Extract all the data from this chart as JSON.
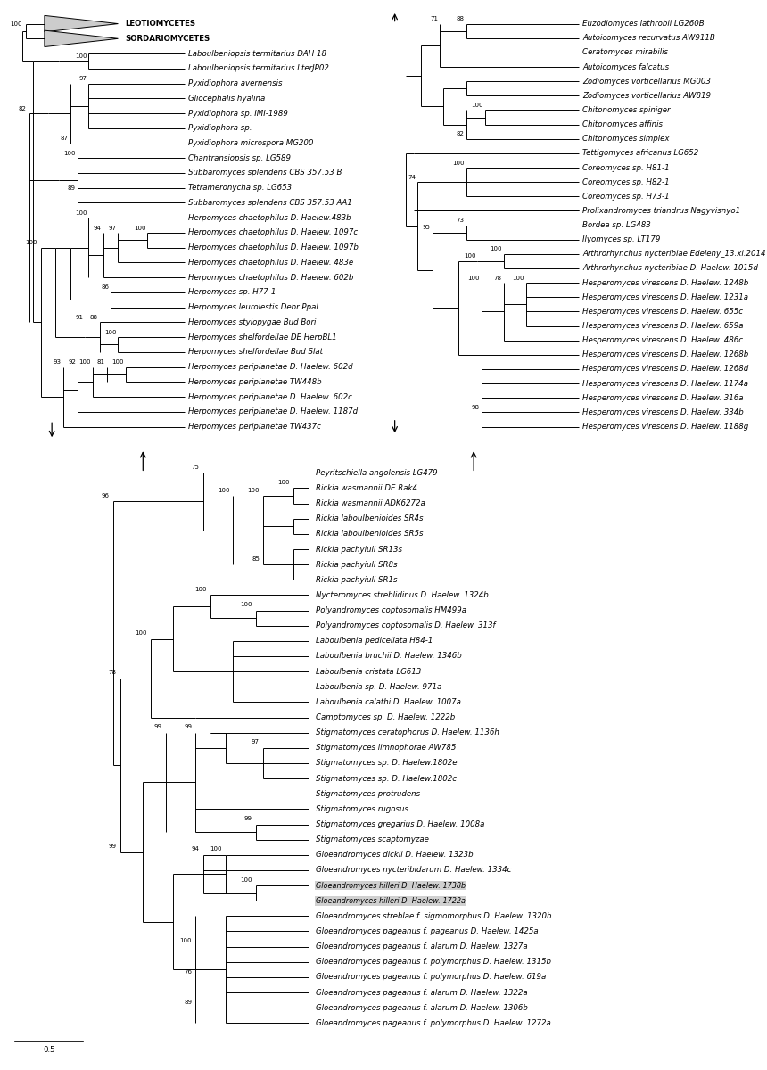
{
  "fontsize": 6.2,
  "bfs": 5.0,
  "lw": 0.7,
  "panel1": {
    "taxa": [
      "LEOTIOMYCETES",
      "SORDARIOMYCETES",
      "Laboulbeniopsis termitarius DAH 18",
      "Laboulbeniopsis termitarius LterJP02",
      "Pyxidiophora avernensis",
      "Gliocephalis hyalina",
      "Pyxidiophora sp. IMI-1989",
      "Pyxidiophora sp.",
      "Pyxidiophora microspora MG200",
      "Chantransiopsis sp. LG589",
      "Subbaromyces splendens CBS 357.53 B",
      "Tetrameronycha sp. LG653",
      "Subbaromyces splendens CBS 357.53 AA1",
      "Herpomyces chaetophilus D. Haelew.483b",
      "Herpomyces chaetophilus D. Haelew. 1097c",
      "Herpomyces chaetophilus D. Haelew. 1097b",
      "Herpomyces chaetophilus D. Haelew. 483e",
      "Herpomyces chaetophilus D. Haelew. 602b",
      "Herpomyces sp. H77-1",
      "Herpomyces leurolestis Debr Ppal",
      "Herpomyces stylopygae Bud Bori",
      "Herpomyces shelfordellae DE HerpBL1",
      "Herpomyces shelfordellae Bud Slat",
      "Herpomyces periplanetae D. Haelew. 602d",
      "Herpomyces periplanetae TW448b",
      "Herpomyces periplanetae D. Haelew. 602c",
      "Herpomyces periplanetae D. Haelew. 1187d",
      "Herpomyces periplanetae TW437c"
    ]
  },
  "panel2": {
    "taxa": [
      "Euzodiomyces lathrobii LG260B",
      "Autoicomyces recurvatus AW911B",
      "Ceratomyces mirabilis",
      "Autoicomyces falcatus",
      "Zodiomyces vorticellarius MG003",
      "Zodiomyces vorticellarius AW819",
      "Chitonomyces spiniger",
      "Chitonomyces affinis",
      "Chitonomyces simplex",
      "Tettigomyces africanus LG652",
      "Coreomyces sp. H81-1",
      "Coreomyces sp. H82-1",
      "Coreomyces sp. H73-1",
      "Prolixandromyces triandrus Nagyvisnyo1",
      "Bordea sp. LG483",
      "Ilyomyces sp. LT179",
      "Arthrorhynchus nycteribiae Edeleny_13.xi.2014",
      "Arthrorhynchus nycteribiae D. Haelew. 1015d",
      "Hesperomyces virescens D. Haelew. 1248b",
      "Hesperomyces virescens D. Haelew. 1231a",
      "Hesperomyces virescens D. Haelew. 655c",
      "Hesperomyces virescens D. Haelew. 659a",
      "Hesperomyces virescens D. Haelew. 486c",
      "Hesperomyces virescens D. Haelew. 1268b",
      "Hesperomyces virescens D. Haelew. 1268d",
      "Hesperomyces virescens D. Haelew. 1174a",
      "Hesperomyces virescens D. Haelew. 316a",
      "Hesperomyces virescens D. Haelew. 334b",
      "Hesperomyces virescens D. Haelew. 1188g"
    ]
  },
  "panel3": {
    "taxa": [
      "Peyritschiella angolensis LG479",
      "Rickia wasmannii DE Rak4",
      "Rickia wasmannii ADK6272a",
      "Rickia laboulbenioides SR4s",
      "Rickia laboulbenioides SR5s",
      "Rickia pachyiuli SR13s",
      "Rickia pachyiuli SR8s",
      "Rickia pachyiuli SR1s",
      "Nycteromyces streblidinus D. Haelew. 1324b",
      "Polyandromyces coptosomalis HM499a",
      "Polyandromyces coptosomalis D. Haelew. 313f",
      "Laboulbenia pedicellata H84-1",
      "Laboulbenia bruchii D. Haelew. 1346b",
      "Laboulbenia cristata LG613",
      "Laboulbenia sp. D. Haelew. 971a",
      "Laboulbenia calathi D. Haelew. 1007a",
      "Camptomyces sp. D. Haelew. 1222b",
      "Stigmatomyces ceratophorus D. Haelew. 1136h",
      "Stigmatomyces limnophorae AW785",
      "Stigmatomyces sp. D. Haelew.1802e",
      "Stigmatomyces sp. D. Haelew.1802c",
      "Stigmatomyces protrudens",
      "Stigmatomyces rugosus",
      "Stigmatomyces gregarius D. Haelew. 1008a",
      "Stigmatomyces scaptomyzae",
      "Gloeandromyces dickii D. Haelew. 1323b",
      "Gloeandromyces nycteribidarum D. Haelew. 1334c",
      "Gloeandromyces hilleri D. Haelew. 1738b",
      "Gloeandromyces hilleri D. Haelew. 1722a",
      "Gloeandromyces streblae f. sigmomorphus D. Haelew. 1320b",
      "Gloeandromyces pageanus f. pageanus D. Haelew. 1425a",
      "Gloeandromyces pageanus f. alarum D. Haelew. 1327a",
      "Gloeandromyces pageanus f. polymorphus D. Haelew. 1315b",
      "Gloeandromyces pageanus f. polymorphus D. Haelew. 619a",
      "Gloeandromyces pageanus f. alarum D. Haelew. 1322a",
      "Gloeandromyces pageanus f. alarum D. Haelew. 1306b",
      "Gloeandromyces pageanus f. polymorphus D. Haelew. 1272a"
    ],
    "highlighted": [
      27,
      28
    ]
  }
}
